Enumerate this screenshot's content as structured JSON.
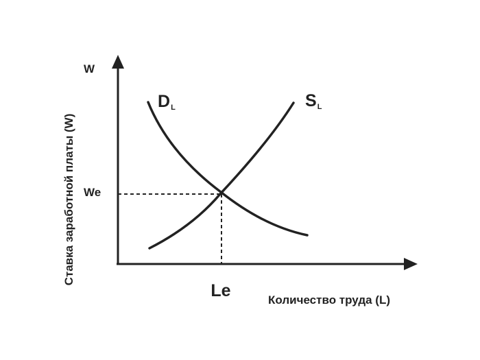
{
  "labels": {
    "y_axis_symbol": "W",
    "y_axis_title": "Ставка заработной платы (W)",
    "x_axis_title": "Количество труда (L)",
    "equilibrium_wage": "We",
    "equilibrium_labor": "Le",
    "demand_main": "D",
    "demand_sub": "L",
    "supply_main": "S",
    "supply_sub": "L"
  },
  "colors": {
    "ink": "#222222"
  }
}
